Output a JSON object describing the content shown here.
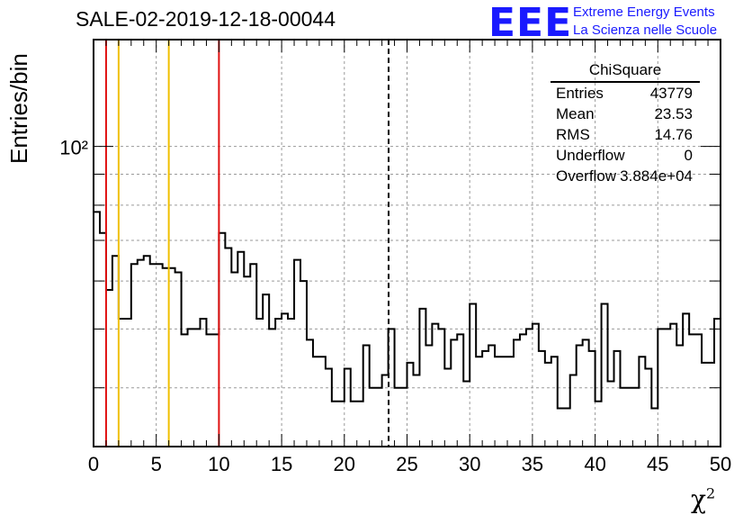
{
  "title": "SALE-02-2019-12-18-00044",
  "logo": {
    "mark": "EEE",
    "line1": "Extreme Energy Events",
    "line2": "La Scienza nelle Scuole",
    "color": "#1a1aff"
  },
  "stats": {
    "name": "ChiSquare",
    "rows": [
      {
        "key": "Entries",
        "value": "43779"
      },
      {
        "key": "Mean",
        "value": "23.53"
      },
      {
        "key": "RMS",
        "value": "14.76"
      },
      {
        "key": "Underflow",
        "value": "0"
      },
      {
        "key": "Overflow",
        "value": "3.884e+04"
      }
    ]
  },
  "chart_data": {
    "type": "histogram",
    "ylabel": "Entries/bin",
    "xlabel": "χ²",
    "xlim": [
      0,
      50
    ],
    "ylog": true,
    "ylim": [
      32,
      150
    ],
    "ytick_label": "10²",
    "xticks": [
      "0",
      "5",
      "10",
      "15",
      "20",
      "25",
      "30",
      "35",
      "40",
      "45",
      "50"
    ],
    "bin_width": 0.5,
    "values": [
      78,
      72,
      58,
      66,
      52,
      52,
      64,
      65,
      66,
      64,
      64,
      63,
      63,
      62,
      49,
      50,
      50,
      52,
      49,
      49,
      72,
      68,
      62,
      67,
      61,
      64,
      52,
      57,
      50,
      52,
      53,
      52,
      65,
      60,
      48,
      45,
      45,
      43,
      38,
      38,
      43,
      38,
      38,
      47,
      40,
      40,
      42,
      50,
      40,
      40,
      44,
      42,
      54,
      47,
      51,
      50,
      43,
      48,
      49,
      41,
      55,
      45,
      46,
      47,
      45,
      45,
      45,
      48,
      49,
      50,
      51,
      46,
      44,
      45,
      37,
      37,
      42,
      47,
      48,
      46,
      38,
      55,
      41,
      46,
      40,
      40,
      40,
      45,
      43,
      37,
      50,
      50,
      51,
      47,
      53,
      49,
      49,
      44,
      44,
      52
    ],
    "markers": [
      {
        "x": 1,
        "color": "#e01010",
        "style": "solid"
      },
      {
        "x": 2,
        "color": "#f0c000",
        "style": "solid"
      },
      {
        "x": 6,
        "color": "#f0c000",
        "style": "solid"
      },
      {
        "x": 10,
        "color": "#e01010",
        "style": "solid"
      },
      {
        "x": 23.53,
        "color": "#000000",
        "style": "dashed"
      }
    ],
    "grid": true
  }
}
